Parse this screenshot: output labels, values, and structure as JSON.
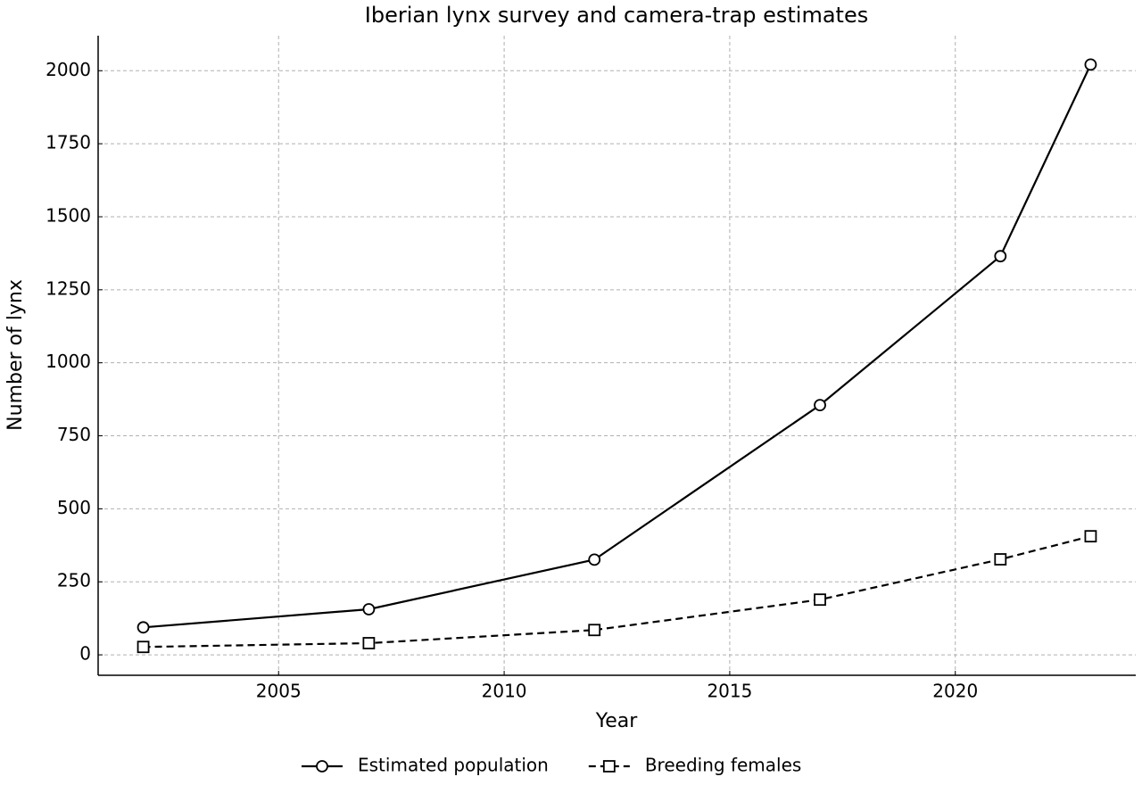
{
  "chart_data": {
    "type": "line",
    "title": "Iberian lynx survey and camera-trap estimates",
    "xlabel": "Year",
    "ylabel": "Number of lynx",
    "x": [
      2002,
      2007,
      2012,
      2017,
      2021,
      2023
    ],
    "series": [
      {
        "name": "Estimated population",
        "color": "#000000",
        "linestyle": "solid",
        "marker": "circle",
        "values": [
          94,
          156,
          326,
          855,
          1365,
          2021
        ]
      },
      {
        "name": "Breeding females",
        "color": "#000000",
        "linestyle": "dashed",
        "marker": "square",
        "values": [
          27,
          40,
          85,
          189,
          327,
          406
        ]
      }
    ],
    "xlim": [
      2001,
      2024
    ],
    "xticks": [
      2005,
      2010,
      2015,
      2020
    ],
    "ylim": [
      -70,
      2120
    ],
    "yticks": [
      0,
      250,
      500,
      750,
      1000,
      1250,
      1500,
      1750,
      2000
    ],
    "grid": true,
    "legend": "bottom"
  }
}
